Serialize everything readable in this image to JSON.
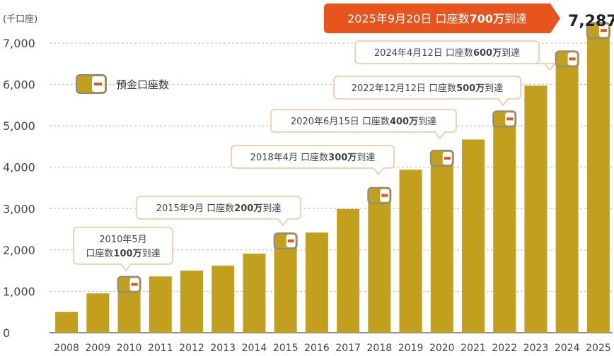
{
  "chart_data": {
    "type": "bar",
    "unit_label": "(千口座)",
    "categories": [
      "2008",
      "2009",
      "2010",
      "2011",
      "2012",
      "2013",
      "2014",
      "2015",
      "2016",
      "2017",
      "2018",
      "2019",
      "2020",
      "2021",
      "2022",
      "2023",
      "2024",
      "2025"
    ],
    "series": [
      {
        "name": "預金口座数",
        "values": [
          500,
          950,
          1150,
          1360,
          1500,
          1620,
          1910,
          2200,
          2420,
          2990,
          3300,
          3940,
          4200,
          4670,
          5150,
          5970,
          6600,
          7287
        ]
      }
    ],
    "ylim": [
      0,
      7000
    ],
    "yticks": [
      "0",
      "1,000",
      "2,000",
      "3,000",
      "4,000",
      "5,000",
      "6,000",
      "7,000"
    ],
    "grid": true,
    "legend": {
      "label": "預金口座数",
      "placement": "upper-left"
    },
    "final_value_label": "7,287",
    "bar_color": "#c2a01e",
    "accent_color": "#e8541e",
    "annotations": [
      {
        "year": "2010",
        "lines": [
          [
            "2010年5月"
          ],
          [
            "口座数",
            "100万",
            "到達"
          ]
        ]
      },
      {
        "year": "2015",
        "lines": [
          [
            "2015年9月 口座数",
            "200万",
            "到達"
          ]
        ]
      },
      {
        "year": "2018",
        "lines": [
          [
            "2018年4月 口座数",
            "300万",
            "到達"
          ]
        ]
      },
      {
        "year": "2020",
        "lines": [
          [
            "2020年6月15日 口座数",
            "400万",
            "到達"
          ]
        ]
      },
      {
        "year": "2022",
        "lines": [
          [
            "2022年12月12日 口座数",
            "500万",
            "到達"
          ]
        ]
      },
      {
        "year": "2024",
        "lines": [
          [
            "2024年4月12日 口座数",
            "600万",
            "到達"
          ]
        ]
      },
      {
        "year": "2025",
        "lines": [
          [
            "2025年9月20日 口座数",
            "700万",
            "到達"
          ]
        ],
        "highlight": true
      }
    ]
  }
}
